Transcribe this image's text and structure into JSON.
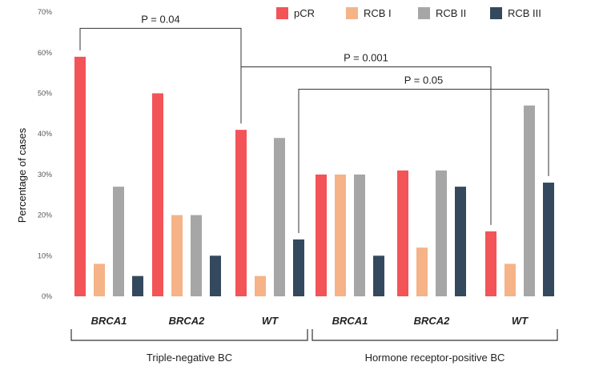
{
  "chart_data": {
    "type": "bar",
    "title": "",
    "xlabel": "",
    "ylabel": "Percentage of cases",
    "ylim": [
      0,
      70
    ],
    "yticks": [
      "0%",
      "10%",
      "20%",
      "30%",
      "40%",
      "50%",
      "60%",
      "70%"
    ],
    "grid": false,
    "legend_position": "top-right",
    "categories": [
      "BRCA1",
      "BRCA2",
      "WT",
      "BRCA1",
      "BRCA2",
      "WT"
    ],
    "groups": [
      {
        "label": "Triple-negative BC",
        "categories": [
          0,
          1,
          2
        ]
      },
      {
        "label": "Hormone receptor-positive BC",
        "categories": [
          3,
          4,
          5
        ]
      }
    ],
    "series": [
      {
        "name": "pCR",
        "color": "#f25458",
        "values": [
          59,
          50,
          41,
          30,
          31,
          16
        ]
      },
      {
        "name": "RCB I",
        "color": "#f5b387",
        "values": [
          8,
          20,
          5,
          30,
          12,
          8
        ]
      },
      {
        "name": "RCB II",
        "color": "#a6a6a6",
        "values": [
          27,
          20,
          39,
          30,
          31,
          47
        ]
      },
      {
        "name": "RCB III",
        "color": "#34495e",
        "values": [
          5,
          10,
          14,
          10,
          27,
          28
        ]
      }
    ],
    "annotations": [
      {
        "text": "P = 0.04",
        "from": {
          "category": 0,
          "series": 0
        },
        "to": {
          "category": 2,
          "series": 0
        },
        "line_level": 66
      },
      {
        "text": "P = 0.001",
        "from": {
          "category": 2,
          "series": 0
        },
        "to": {
          "category": 5,
          "series": 0
        },
        "line_level": 56.5
      },
      {
        "text": "P = 0.05",
        "from": {
          "category": 2,
          "series": 3
        },
        "to": {
          "category": 5,
          "series": 3
        },
        "line_level": 51
      }
    ]
  }
}
